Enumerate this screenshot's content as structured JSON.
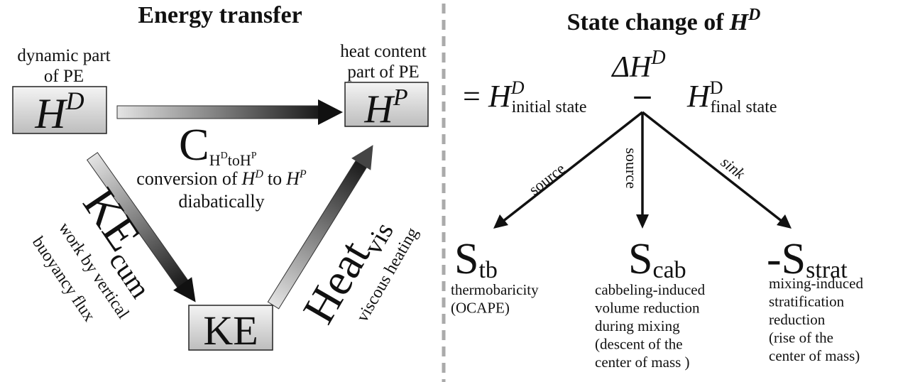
{
  "left": {
    "title": "Energy transfer",
    "nodes": [
      {
        "symbol": "H",
        "sup": "D",
        "caption": [
          "dynamic part",
          "of PE"
        ]
      },
      {
        "symbol": "H",
        "sup": "P",
        "caption": [
          "heat content",
          "part of PE"
        ]
      },
      {
        "symbol": "KE"
      }
    ],
    "arrows": [
      {
        "symbol": "C",
        "sub": [
          "H",
          "D",
          "to",
          "H",
          "P"
        ],
        "description": [
          "conversion of",
          "H",
          "D",
          "to",
          "H",
          "P",
          "diabatically"
        ]
      },
      {
        "symbol": "KE",
        "sub": "cum",
        "description": [
          "work by vertical",
          "buoyancy flux"
        ]
      },
      {
        "symbol": "Heat",
        "sub": "vis",
        "description": [
          "viscous heating"
        ]
      }
    ]
  },
  "right": {
    "title": [
      "State change of",
      "H",
      "D"
    ],
    "delta": [
      "ΔH",
      "D"
    ],
    "equation": [
      "=",
      "H",
      "D",
      "initial state",
      "–",
      "H",
      "D",
      "final state"
    ],
    "branches": [
      {
        "label": "source",
        "symbol": "S",
        "sub": "tb",
        "description": [
          "thermobaricity",
          "(OCAPE)"
        ]
      },
      {
        "label": "source",
        "symbol": "S",
        "sub": "cab",
        "description": [
          "cabbeling-induced",
          "volume reduction",
          "during mixing",
          "(descent of the",
          "center of mass )"
        ]
      },
      {
        "label": "sink",
        "symbol": "-S",
        "sub": "strat",
        "description": [
          "mixing-induced",
          "stratification",
          "reduction",
          "(rise of the",
          "center of mass)"
        ]
      }
    ]
  }
}
